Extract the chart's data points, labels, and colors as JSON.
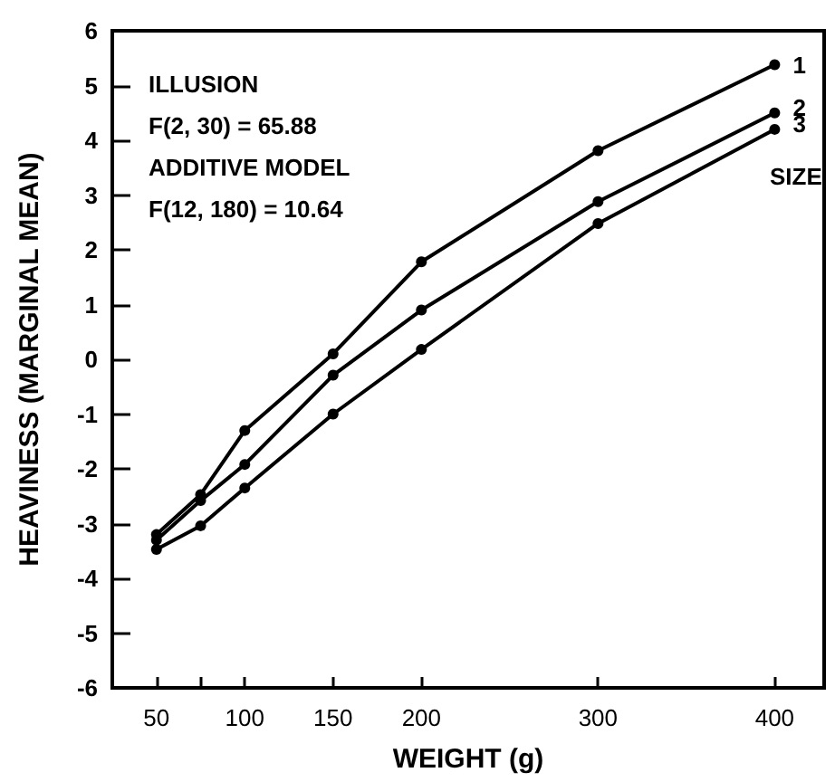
{
  "chart_data": {
    "type": "line",
    "xlabel": "WEIGHT (g)",
    "ylabel": "HEAVINESS (MARGINAL MEAN)",
    "x": [
      50,
      75,
      100,
      150,
      200,
      300,
      400
    ],
    "series": [
      {
        "name": "1",
        "color": "#000000",
        "values": [
          -3.2,
          -2.47,
          -1.3,
          0.1,
          1.78,
          3.81,
          5.38
        ]
      },
      {
        "name": "2",
        "color": "#000000",
        "values": [
          -3.3,
          -2.58,
          -1.92,
          -0.29,
          0.9,
          2.88,
          4.5
        ]
      },
      {
        "name": "3",
        "color": "#000000",
        "values": [
          -3.47,
          -3.04,
          -2.35,
          -1.0,
          0.18,
          2.48,
          4.2
        ]
      }
    ],
    "annotations": [
      "ILLUSION",
      "F(2, 30) = 65.88",
      "ADDITIVE MODEL",
      "F(12, 180) = 10.64",
      "SIZE"
    ],
    "xlim": [
      25,
      428
    ],
    "xticks": [
      50,
      {
        "value": 75,
        "label": null
      },
      100,
      150,
      200,
      300,
      400
    ],
    "ylim": [
      -6,
      6
    ],
    "yticks": [
      -6,
      -5,
      -4,
      -3,
      -2,
      -1,
      0,
      1,
      2,
      3,
      4,
      5,
      6
    ],
    "grid": false,
    "legend": false,
    "marker": "circle",
    "line_style": "solid"
  }
}
